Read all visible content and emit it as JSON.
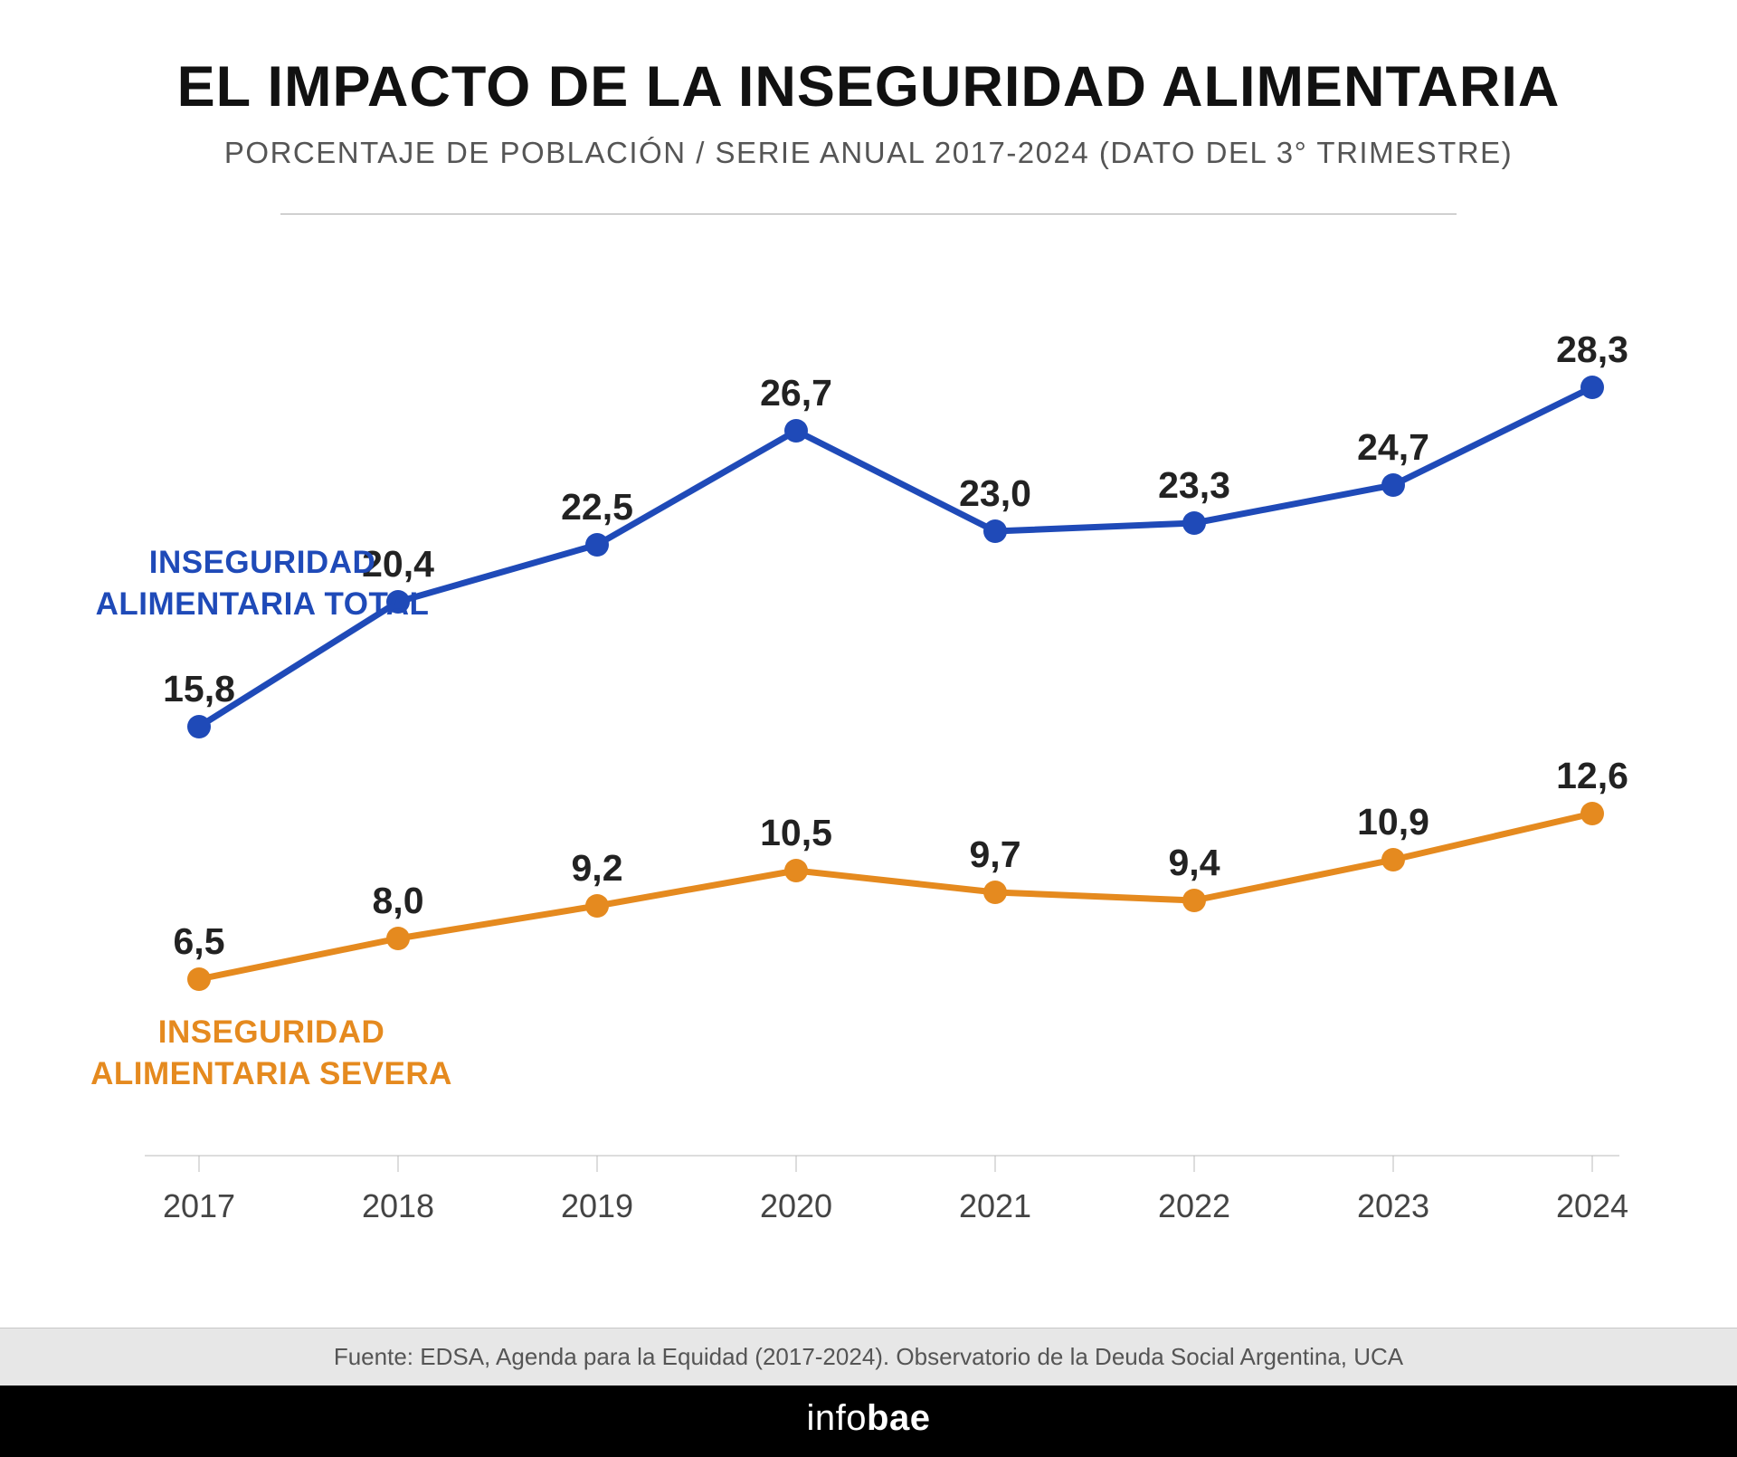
{
  "header": {
    "title": "EL IMPACTO DE LA INSEGURIDAD ALIMENTARIA",
    "subtitle": "PORCENTAJE DE POBLACIÓN / SERIE ANUAL 2017-2024 (DATO DEL 3° TRIMESTRE)"
  },
  "chart": {
    "type": "line",
    "background_color": "#ffffff",
    "categories": [
      "2017",
      "2018",
      "2019",
      "2020",
      "2021",
      "2022",
      "2023",
      "2024"
    ],
    "ylim": [
      0,
      30
    ],
    "axis_color": "#bbbbbb",
    "xlabel_fontsize": 36,
    "xlabel_color": "#444444",
    "data_label_fontsize": 41,
    "series_label_fontsize": 35,
    "marker_radius": 13,
    "line_width": 7,
    "series": [
      {
        "key": "total",
        "label_line1": "INSEGURIDAD",
        "label_line2": "ALIMENTARIA TOTAL",
        "color": "#1f4ab8",
        "values": [
          15.8,
          20.4,
          22.5,
          26.7,
          23.0,
          23.3,
          24.7,
          28.3
        ],
        "display": [
          "15,8",
          "20,4",
          "22,5",
          "26,7",
          "23,0",
          "23,3",
          "24,7",
          "28,3"
        ]
      },
      {
        "key": "severa",
        "label_line1": "INSEGURIDAD",
        "label_line2": "ALIMENTARIA SEVERA",
        "color": "#e58a1f",
        "values": [
          6.5,
          8.0,
          9.2,
          10.5,
          9.7,
          9.4,
          10.9,
          12.6
        ],
        "display": [
          "6,5",
          "8,0",
          "9,2",
          "10,5",
          "9,7",
          "9,4",
          "10,9",
          "12,6"
        ]
      }
    ]
  },
  "footer": {
    "source": "Fuente: EDSA, Agenda para la Equidad (2017-2024). Observatorio de la Deuda Social Argentina, UCA",
    "brand_prefix": "info",
    "brand_bold": "bae"
  }
}
